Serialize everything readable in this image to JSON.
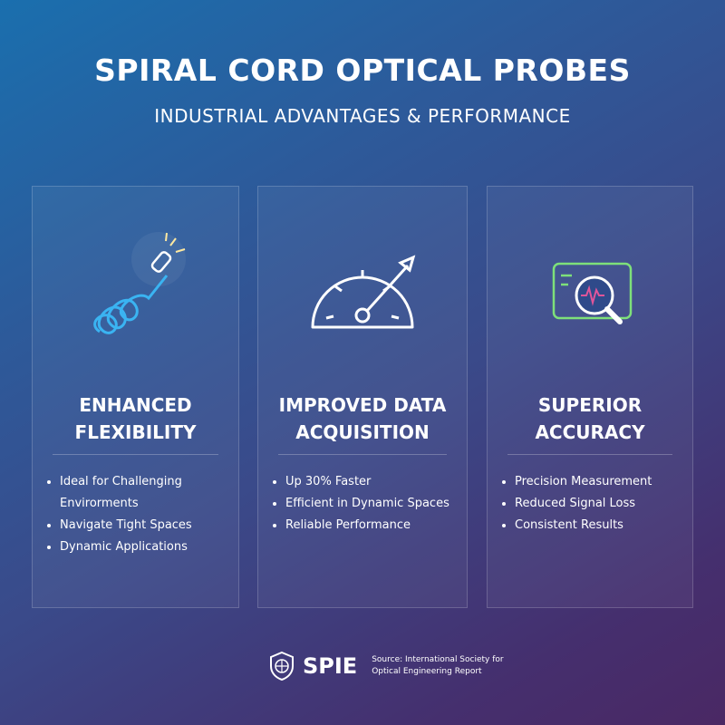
{
  "header": {
    "title": "SPIRAL CORD OPTICAL PROBES",
    "subtitle": "INDUSTRIAL ADVANTAGES & PERFORMANCE"
  },
  "cards": [
    {
      "title_lines": [
        "ENHANCED",
        "FLEXIBILITY"
      ],
      "bullets": [
        "Ideal for Challenging Envirorments",
        "Navigate Tight Spaces",
        "Dynamic Applications"
      ]
    },
    {
      "title_lines": [
        "IMPROVED DATA",
        "ACQUISITION"
      ],
      "bullets": [
        "Up 30% Faster",
        "Efficient in Dynamic Spaces",
        "Reliable Performance"
      ]
    },
    {
      "title_lines": [
        "SUPERIOR",
        "ACCURACY"
      ],
      "bullets": [
        "Precision Measurement",
        "Reduced Signal Loss",
        "Consistent Results"
      ]
    }
  ],
  "footer": {
    "logo": "SPIE",
    "source_lines": [
      "Source: International Society for",
      "Optical Engineering Report"
    ]
  }
}
